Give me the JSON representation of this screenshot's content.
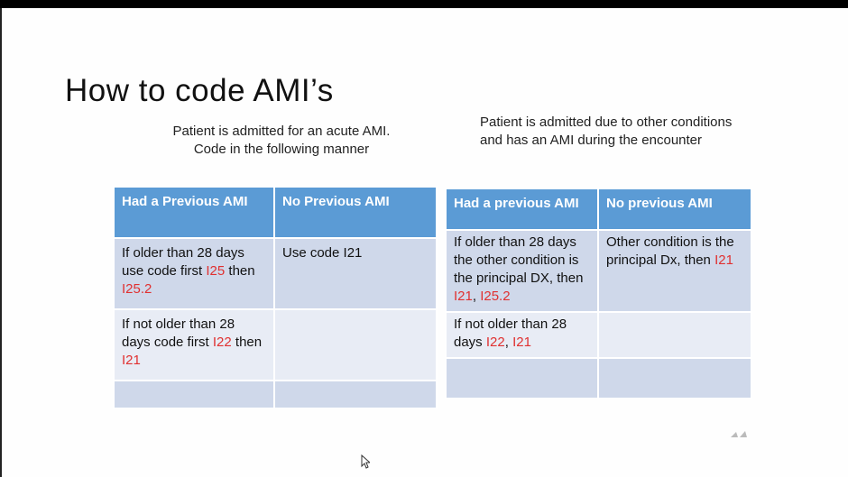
{
  "title": "How to code AMI’s",
  "left": {
    "caption_line1": "Patient is admitted for an acute AMI.",
    "caption_line2": "Code in the following manner",
    "headers": [
      "Had a Previous AMI",
      "No Previous AMI"
    ],
    "row1": {
      "c1_a": "If older than 28 days use code first ",
      "c1_code1": "I25",
      "c1_b": " then ",
      "c1_code2": "I25.2",
      "c2": "Use code I21"
    },
    "row2": {
      "c1_a": "If not older than 28 days code first ",
      "c1_code1": "I22",
      "c1_b": " then ",
      "c1_code2": "I21"
    }
  },
  "right": {
    "caption": "Patient is admitted due to other conditions and has an AMI during the encounter",
    "headers": [
      "Had a previous AMI",
      "No previous AMI"
    ],
    "row1": {
      "c1_a": "If older than 28 days the other condition is the principal DX, then ",
      "c1_code1": "I21",
      "c1_sep": ", ",
      "c1_code2": "I25.2",
      "c2_a": "Other condition is the principal Dx, then ",
      "c2_code": "I21"
    },
    "row2": {
      "c1_a": "If not older than 28 days ",
      "c1_code1": "I22",
      "c1_sep": ", ",
      "c1_code2": "I21"
    }
  },
  "colors": {
    "header": "#5b9bd5",
    "row_dark": "#cfd8ea",
    "row_light": "#e8ecf5",
    "code_red": "#e03030"
  }
}
